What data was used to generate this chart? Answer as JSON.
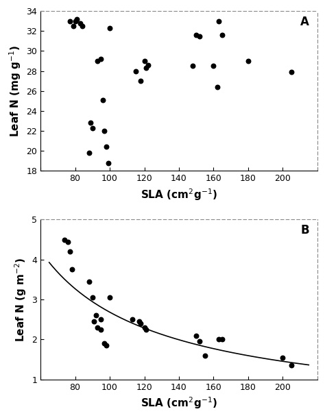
{
  "panel_A": {
    "scatter_x": [
      77,
      79,
      80,
      81,
      83,
      84,
      88,
      89,
      90,
      93,
      95,
      96,
      97,
      98,
      99,
      100,
      115,
      118,
      120,
      121,
      122,
      148,
      150,
      152,
      160,
      162,
      163,
      165,
      180,
      205
    ],
    "scatter_y": [
      33.0,
      32.5,
      33.0,
      33.2,
      32.8,
      32.5,
      19.8,
      22.8,
      22.3,
      29.0,
      29.2,
      25.1,
      22.0,
      20.4,
      18.8,
      32.3,
      28.0,
      27.0,
      29.0,
      28.3,
      28.6,
      28.5,
      31.6,
      31.5,
      28.5,
      26.4,
      33.0,
      31.6,
      29.0,
      27.9
    ],
    "xlabel": "SLA (cm$^2$g$^{-1}$)",
    "ylabel": "Leaf N (mg g$^{-1}$)",
    "xlim": [
      60,
      220
    ],
    "ylim": [
      18,
      34
    ],
    "xticks": [
      60,
      80,
      100,
      120,
      140,
      160,
      180,
      200,
      220
    ],
    "yticks": [
      18,
      20,
      22,
      24,
      26,
      28,
      30,
      32,
      34
    ],
    "label": "A"
  },
  "panel_B": {
    "scatter_x": [
      74,
      76,
      77,
      78,
      88,
      90,
      91,
      92,
      93,
      95,
      95,
      97,
      98,
      100,
      113,
      117,
      118,
      120,
      121,
      150,
      152,
      155,
      163,
      165,
      200,
      205
    ],
    "scatter_y": [
      4.5,
      4.45,
      4.2,
      3.75,
      3.45,
      3.05,
      2.45,
      2.6,
      2.3,
      2.25,
      2.5,
      1.9,
      1.85,
      3.05,
      2.5,
      2.45,
      2.4,
      2.3,
      2.25,
      2.1,
      1.95,
      1.6,
      2.0,
      2.0,
      1.55,
      1.35
    ],
    "curve_a": 390.0,
    "curve_b": -1.02,
    "xlabel": "SLA (cm$^2$g$^{-1}$)",
    "ylabel": "Leaf N (g m$^{-2}$)",
    "xlim": [
      60,
      220
    ],
    "ylim": [
      1,
      5
    ],
    "xticks": [
      60,
      80,
      100,
      120,
      140,
      160,
      180,
      200,
      220
    ],
    "yticks": [
      1,
      2,
      3,
      4,
      5
    ],
    "label": "B"
  },
  "marker_color": "#000000",
  "marker_size": 22,
  "line_color": "#000000",
  "line_width": 1.2,
  "background_color": "#ffffff",
  "tick_fontsize": 9,
  "label_fontsize": 11,
  "panel_label_fontsize": 12
}
